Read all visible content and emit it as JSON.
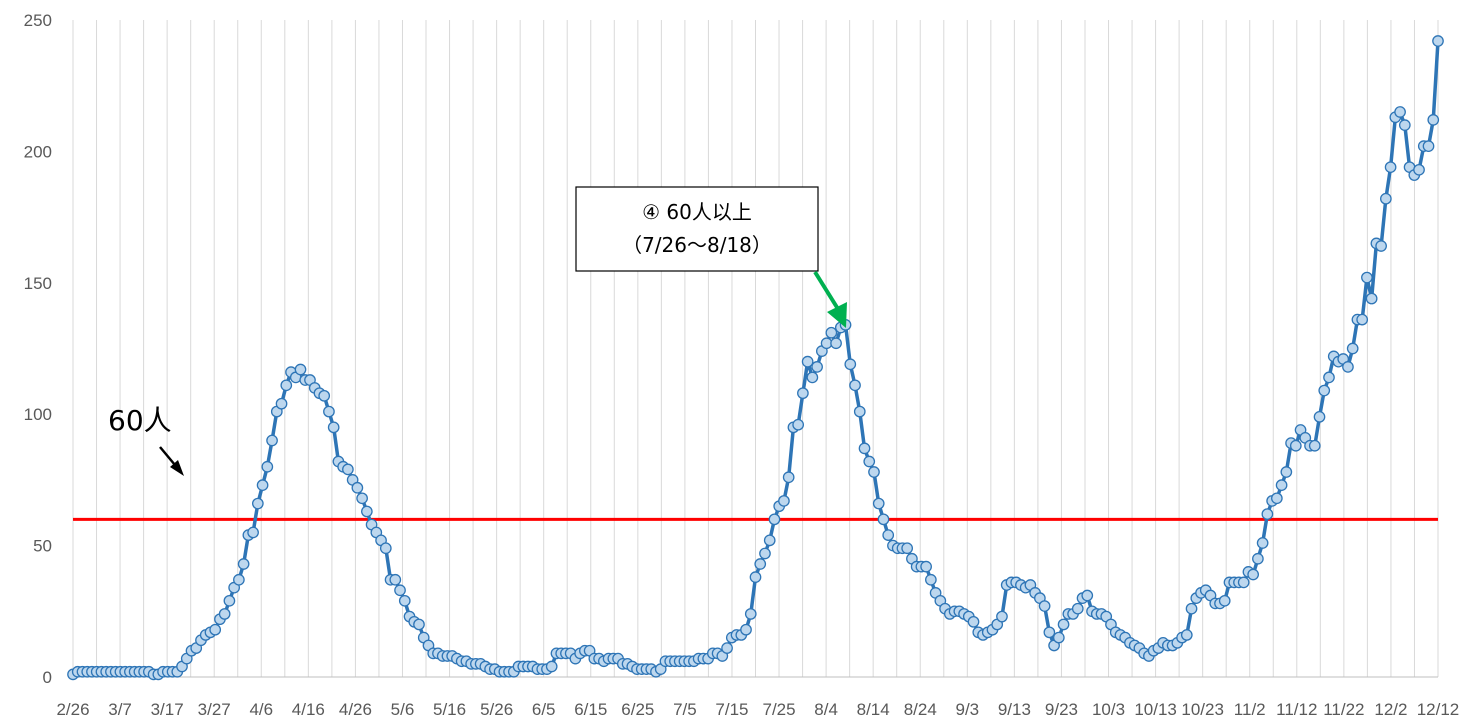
{
  "chart_data": {
    "type": "line",
    "xlabel": "",
    "ylabel": "",
    "ylim": [
      0,
      250
    ],
    "yticks": [
      0,
      50,
      100,
      150,
      200,
      250
    ],
    "grid": "vertical",
    "x_tick_labels": [
      "2/26",
      "3/7",
      "3/17",
      "3/27",
      "4/6",
      "4/16",
      "4/26",
      "5/6",
      "5/16",
      "5/26",
      "6/5",
      "6/15",
      "6/25",
      "7/5",
      "7/15",
      "7/25",
      "8/4",
      "8/14",
      "8/24",
      "9/3",
      "9/13",
      "9/23",
      "10/3",
      "10/13",
      "10/23",
      "11/2",
      "11/12",
      "11/22",
      "12/2",
      "12/12"
    ],
    "x_start": "2/26",
    "x_end": "12/12",
    "colors": {
      "line": "#2e75b6",
      "marker_fill": "#bdd7ee",
      "marker_stroke": "#2e75b6",
      "threshold": "#ff0000",
      "arrow_callout": "#00b050",
      "grid": "#d9d9d9"
    },
    "threshold": {
      "value": 60,
      "label": "60人"
    },
    "annotation": {
      "line1": "④ 60人以上",
      "line2": "（7/26〜8/18）",
      "target_date": "8/8",
      "target_value": 130
    },
    "series": [
      {
        "values": [
          1,
          2,
          2,
          2,
          2,
          2,
          2,
          2,
          2,
          2,
          2,
          2,
          2,
          2,
          2,
          2,
          2,
          1,
          1,
          2,
          2,
          2,
          2,
          4,
          7,
          10,
          11,
          14,
          16,
          17,
          18,
          22,
          24,
          29,
          34,
          37,
          43,
          54,
          55,
          66,
          73,
          80,
          90,
          101,
          104,
          111,
          116,
          114,
          117,
          113,
          113,
          110,
          108,
          107,
          101,
          95,
          82,
          80,
          79,
          75,
          72,
          68,
          63,
          58,
          55,
          52,
          49,
          37,
          37,
          33,
          29,
          23,
          21,
          20,
          15,
          12,
          9,
          9,
          8,
          8,
          8,
          7,
          6,
          6,
          5,
          5,
          5,
          4,
          3,
          3,
          2,
          2,
          2,
          2,
          4,
          4,
          4,
          4,
          3,
          3,
          3,
          4,
          9,
          9,
          9,
          9,
          7,
          9,
          10,
          10,
          7,
          7,
          6,
          7,
          7,
          7,
          5,
          5,
          4,
          3,
          3,
          3,
          3,
          2,
          3,
          6,
          6,
          6,
          6,
          6,
          6,
          6,
          7,
          7,
          7,
          9,
          9,
          8,
          11,
          15,
          16,
          16,
          18,
          24,
          38,
          43,
          47,
          52,
          60,
          65,
          67,
          76,
          95,
          96,
          108,
          120,
          114,
          118,
          124,
          127,
          131,
          127,
          133,
          134,
          119,
          111,
          101,
          87,
          82,
          78,
          66,
          60,
          54,
          50,
          49,
          49,
          49,
          45,
          42,
          42,
          42,
          37,
          32,
          29,
          26,
          24,
          25,
          25,
          24,
          23,
          21,
          17,
          16,
          17,
          18,
          20,
          23,
          35,
          36,
          36,
          35,
          34,
          35,
          32,
          30,
          27,
          17,
          12,
          15,
          20,
          24,
          24,
          26,
          30,
          31,
          25,
          24,
          24,
          23,
          20,
          17,
          16,
          15,
          13,
          12,
          11,
          9,
          8,
          10,
          11,
          13,
          12,
          12,
          13,
          15,
          16,
          26,
          30,
          32,
          33,
          31,
          28,
          28,
          29,
          36,
          36,
          36,
          36,
          40,
          39,
          45,
          51,
          62,
          67,
          68,
          73,
          78,
          89,
          88,
          94,
          91,
          88,
          88,
          99,
          109,
          114,
          122,
          120,
          121,
          118,
          125,
          136,
          136,
          152,
          144,
          165,
          164,
          182,
          194,
          213,
          215,
          210,
          194,
          191,
          193,
          202,
          202,
          212,
          242
        ]
      }
    ]
  }
}
